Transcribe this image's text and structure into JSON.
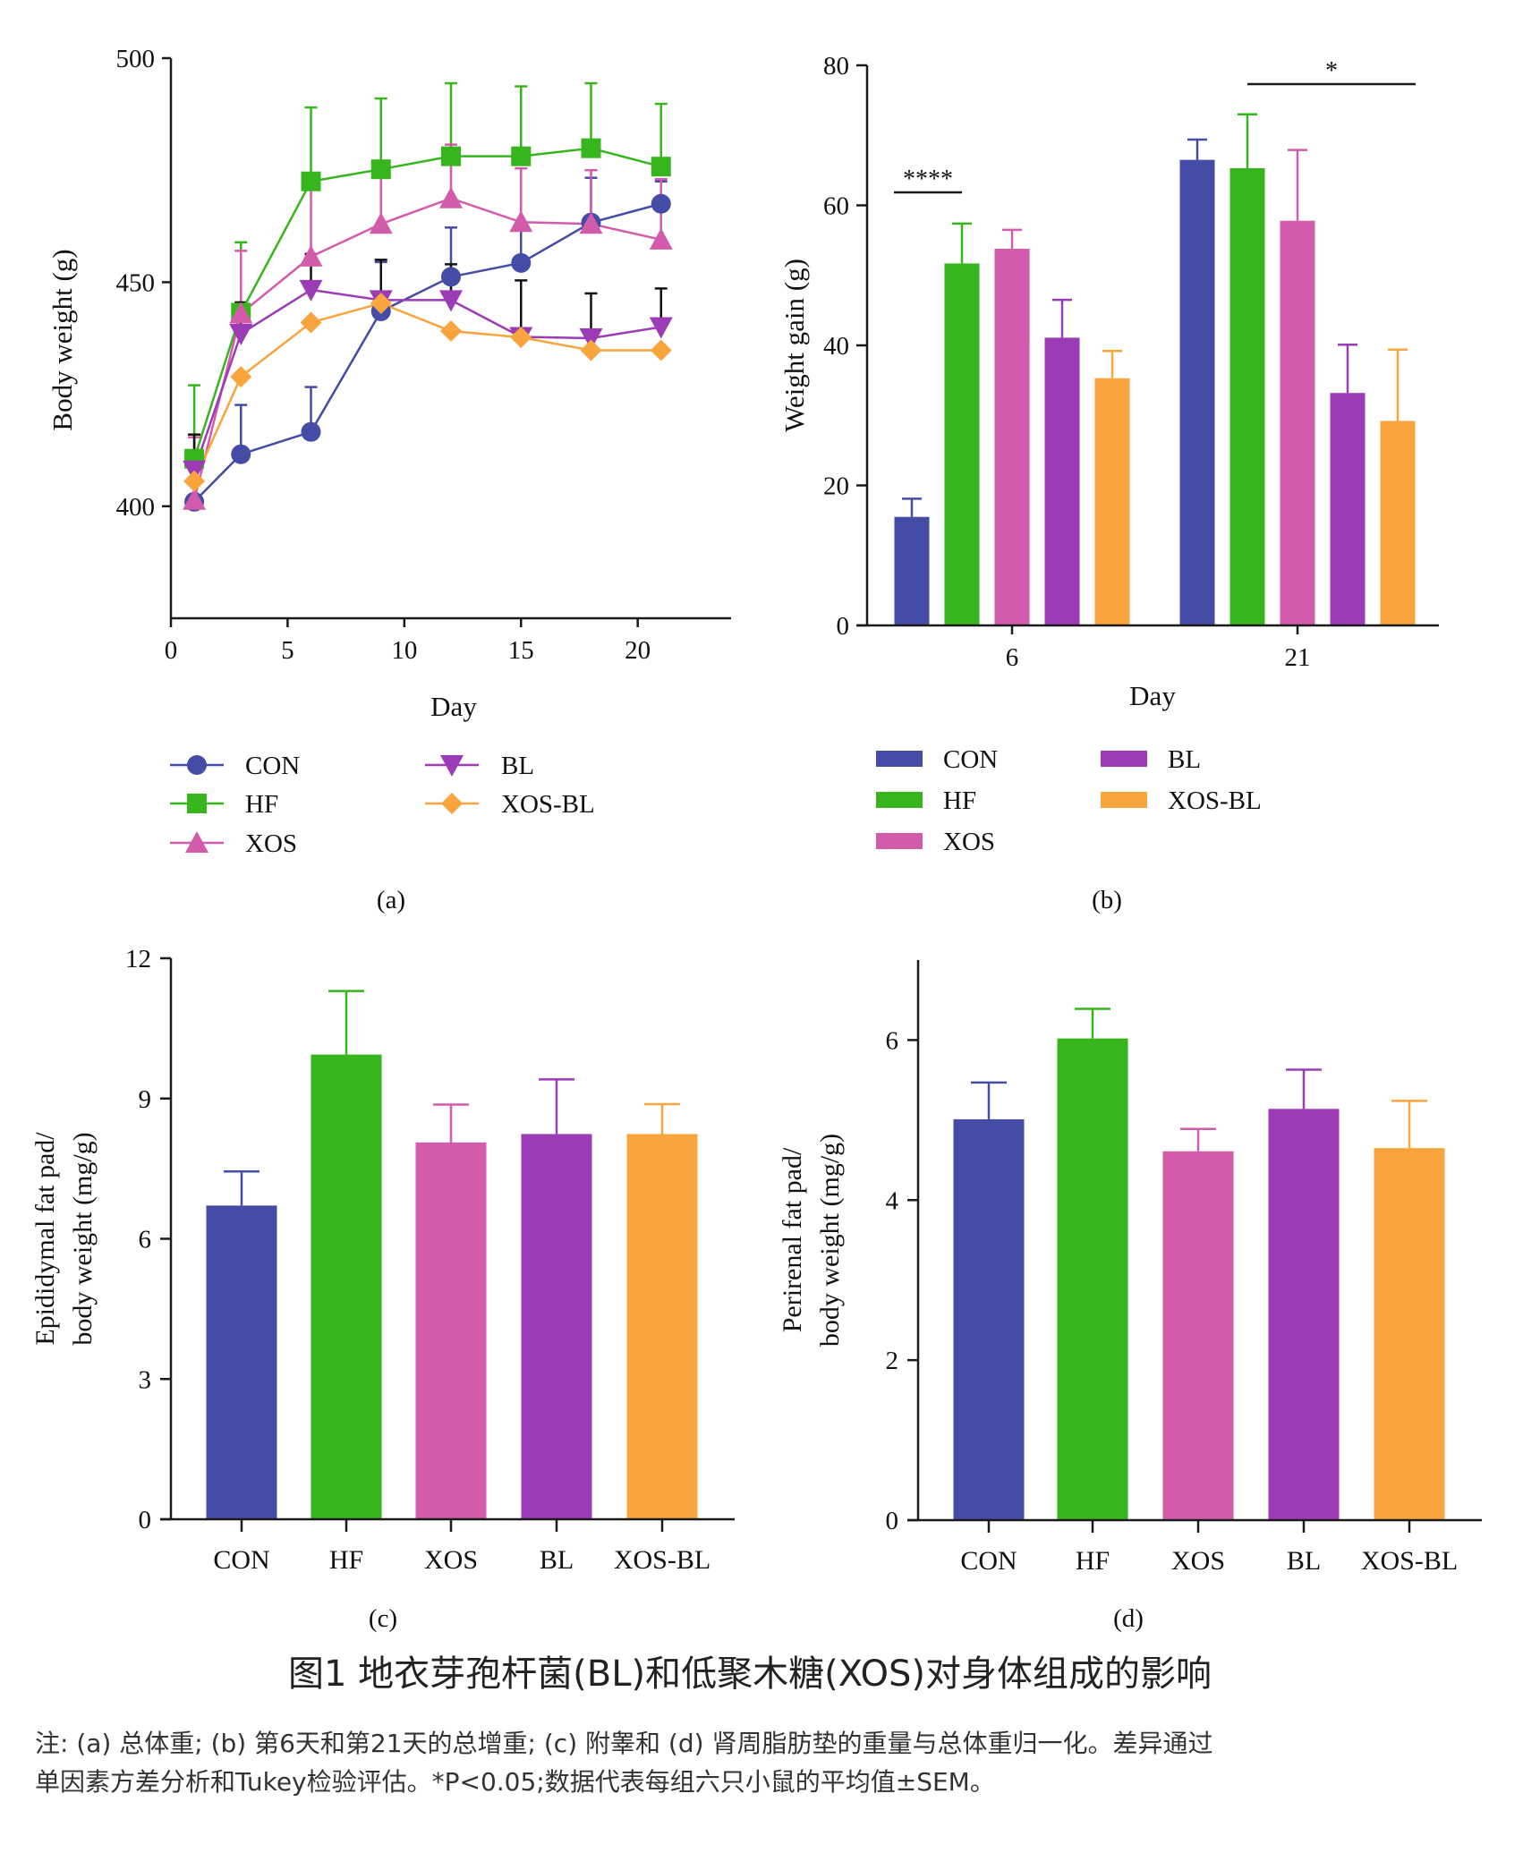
{
  "colors": {
    "CON": "#444ca5",
    "HF": "#36b51c",
    "XOS": "#d35bab",
    "BL": "#9c3bb6",
    "XOS-BL": "#f9a43d",
    "axis": "#1a1a1a"
  },
  "chart_data": [
    {
      "panel": "(a)",
      "type": "line",
      "xlabel": "Day",
      "ylabel": "Body weight (g)",
      "xlim": [
        0,
        24
      ],
      "ylim": [
        375,
        500
      ],
      "xticks": [
        0,
        5,
        10,
        15,
        20
      ],
      "yticks": [
        400,
        450,
        500
      ],
      "grid": false,
      "legend_placement": "bottom",
      "x": [
        1,
        3,
        6,
        9,
        12,
        15,
        18,
        21
      ],
      "series": [
        {
          "name": "CON",
          "marker": "circle",
          "values": [
            401,
            411.6,
            416.6,
            443.5,
            451.2,
            454.3,
            463.3,
            467.5
          ],
          "sem": [
            0,
            11,
            10,
            11,
            11,
            8,
            10,
            5
          ]
        },
        {
          "name": "HF",
          "marker": "square",
          "values": [
            410.6,
            443.2,
            472.5,
            475.2,
            478.1,
            478.1,
            479.9,
            475.8
          ],
          "sem": [
            16.4,
            15.7,
            16.5,
            15.8,
            16.3,
            15.6,
            14.5,
            14
          ]
        },
        {
          "name": "XOS",
          "marker": "triangle-up",
          "values": [
            401.4,
            443,
            455.7,
            463,
            468.7,
            463.4,
            463,
            459.5
          ],
          "sem": [
            14,
            14,
            15,
            14,
            12,
            12,
            12,
            13.5
          ]
        },
        {
          "name": "BL",
          "marker": "triangle-down",
          "values": [
            408,
            438.5,
            448.3,
            446,
            446,
            437.8,
            437.5,
            440
          ],
          "sem": [
            8,
            7,
            8,
            9,
            8,
            12.6,
            10,
            8.6
          ]
        },
        {
          "name": "XOS-BL",
          "marker": "diamond",
          "values": [
            405.6,
            428.9,
            441,
            445.3,
            439.1,
            437.7,
            434.8,
            434.8
          ],
          "sem": [
            0,
            0,
            0,
            0,
            0,
            0,
            0,
            0
          ]
        }
      ]
    },
    {
      "panel": "(b)",
      "type": "bar",
      "xlabel": "Day",
      "ylabel": "Weight gain (g)",
      "ylim": [
        0,
        80
      ],
      "yticks": [
        0,
        20,
        40,
        60,
        80
      ],
      "categories": [
        "6",
        "21"
      ],
      "legend_placement": "bottom",
      "series": [
        {
          "name": "CON",
          "values": [
            15.5,
            66.5
          ],
          "sem": [
            2.6,
            2.9
          ]
        },
        {
          "name": "HF",
          "values": [
            51.7,
            65.3
          ],
          "sem": [
            5.7,
            7.7
          ]
        },
        {
          "name": "XOS",
          "values": [
            53.8,
            57.8
          ],
          "sem": [
            2.7,
            10.1
          ]
        },
        {
          "name": "BL",
          "values": [
            41.1,
            33.2
          ],
          "sem": [
            5.4,
            6.9
          ]
        },
        {
          "name": "XOS-BL",
          "values": [
            35.3,
            29.2
          ],
          "sem": [
            3.9,
            10.2
          ]
        }
      ],
      "annotations": [
        {
          "text": "****",
          "category": "6",
          "from": "CON",
          "to": "HF"
        },
        {
          "text": "*",
          "category": "21",
          "from": "HF",
          "to": "XOS-BL"
        }
      ]
    },
    {
      "panel": "(c)",
      "type": "bar",
      "ylabel_lines": [
        "Epididymal fat pad/",
        "body weight (mg/g)"
      ],
      "ylim": [
        0,
        12
      ],
      "yticks": [
        0,
        3,
        6,
        9,
        12
      ],
      "categories": [
        "CON",
        "HF",
        "XOS",
        "BL",
        "XOS-BL"
      ],
      "values": [
        6.71,
        9.94,
        8.06,
        8.24,
        8.24
      ],
      "sem": [
        0.73,
        1.36,
        0.81,
        1.17,
        0.64
      ]
    },
    {
      "panel": "(d)",
      "type": "bar",
      "ylabel_lines": [
        "Perirenal fat pad/",
        "body weight (mg/g)"
      ],
      "ylim": [
        0,
        7
      ],
      "yticks": [
        0,
        2,
        4,
        6
      ],
      "categories": [
        "CON",
        "HF",
        "XOS",
        "BL",
        "XOS-BL"
      ],
      "values": [
        5.01,
        6.02,
        4.61,
        5.14,
        4.65
      ],
      "sem": [
        0.46,
        0.37,
        0.28,
        0.49,
        0.59
      ]
    }
  ],
  "caption": {
    "title": "图1 地衣芽孢杆菌(BL)和低聚木糖(XOS)对身体组成的影响",
    "note_lines": [
      "注: (a) 总体重; (b) 第6天和第21天的总增重; (c) 附睾和 (d) 肾周脂肪垫的重量与总体重归一化。差异通过",
      "单因素方差分析和Tukey检验评估。*P<0.05;数据代表每组六只小鼠的平均值±SEM。"
    ]
  }
}
